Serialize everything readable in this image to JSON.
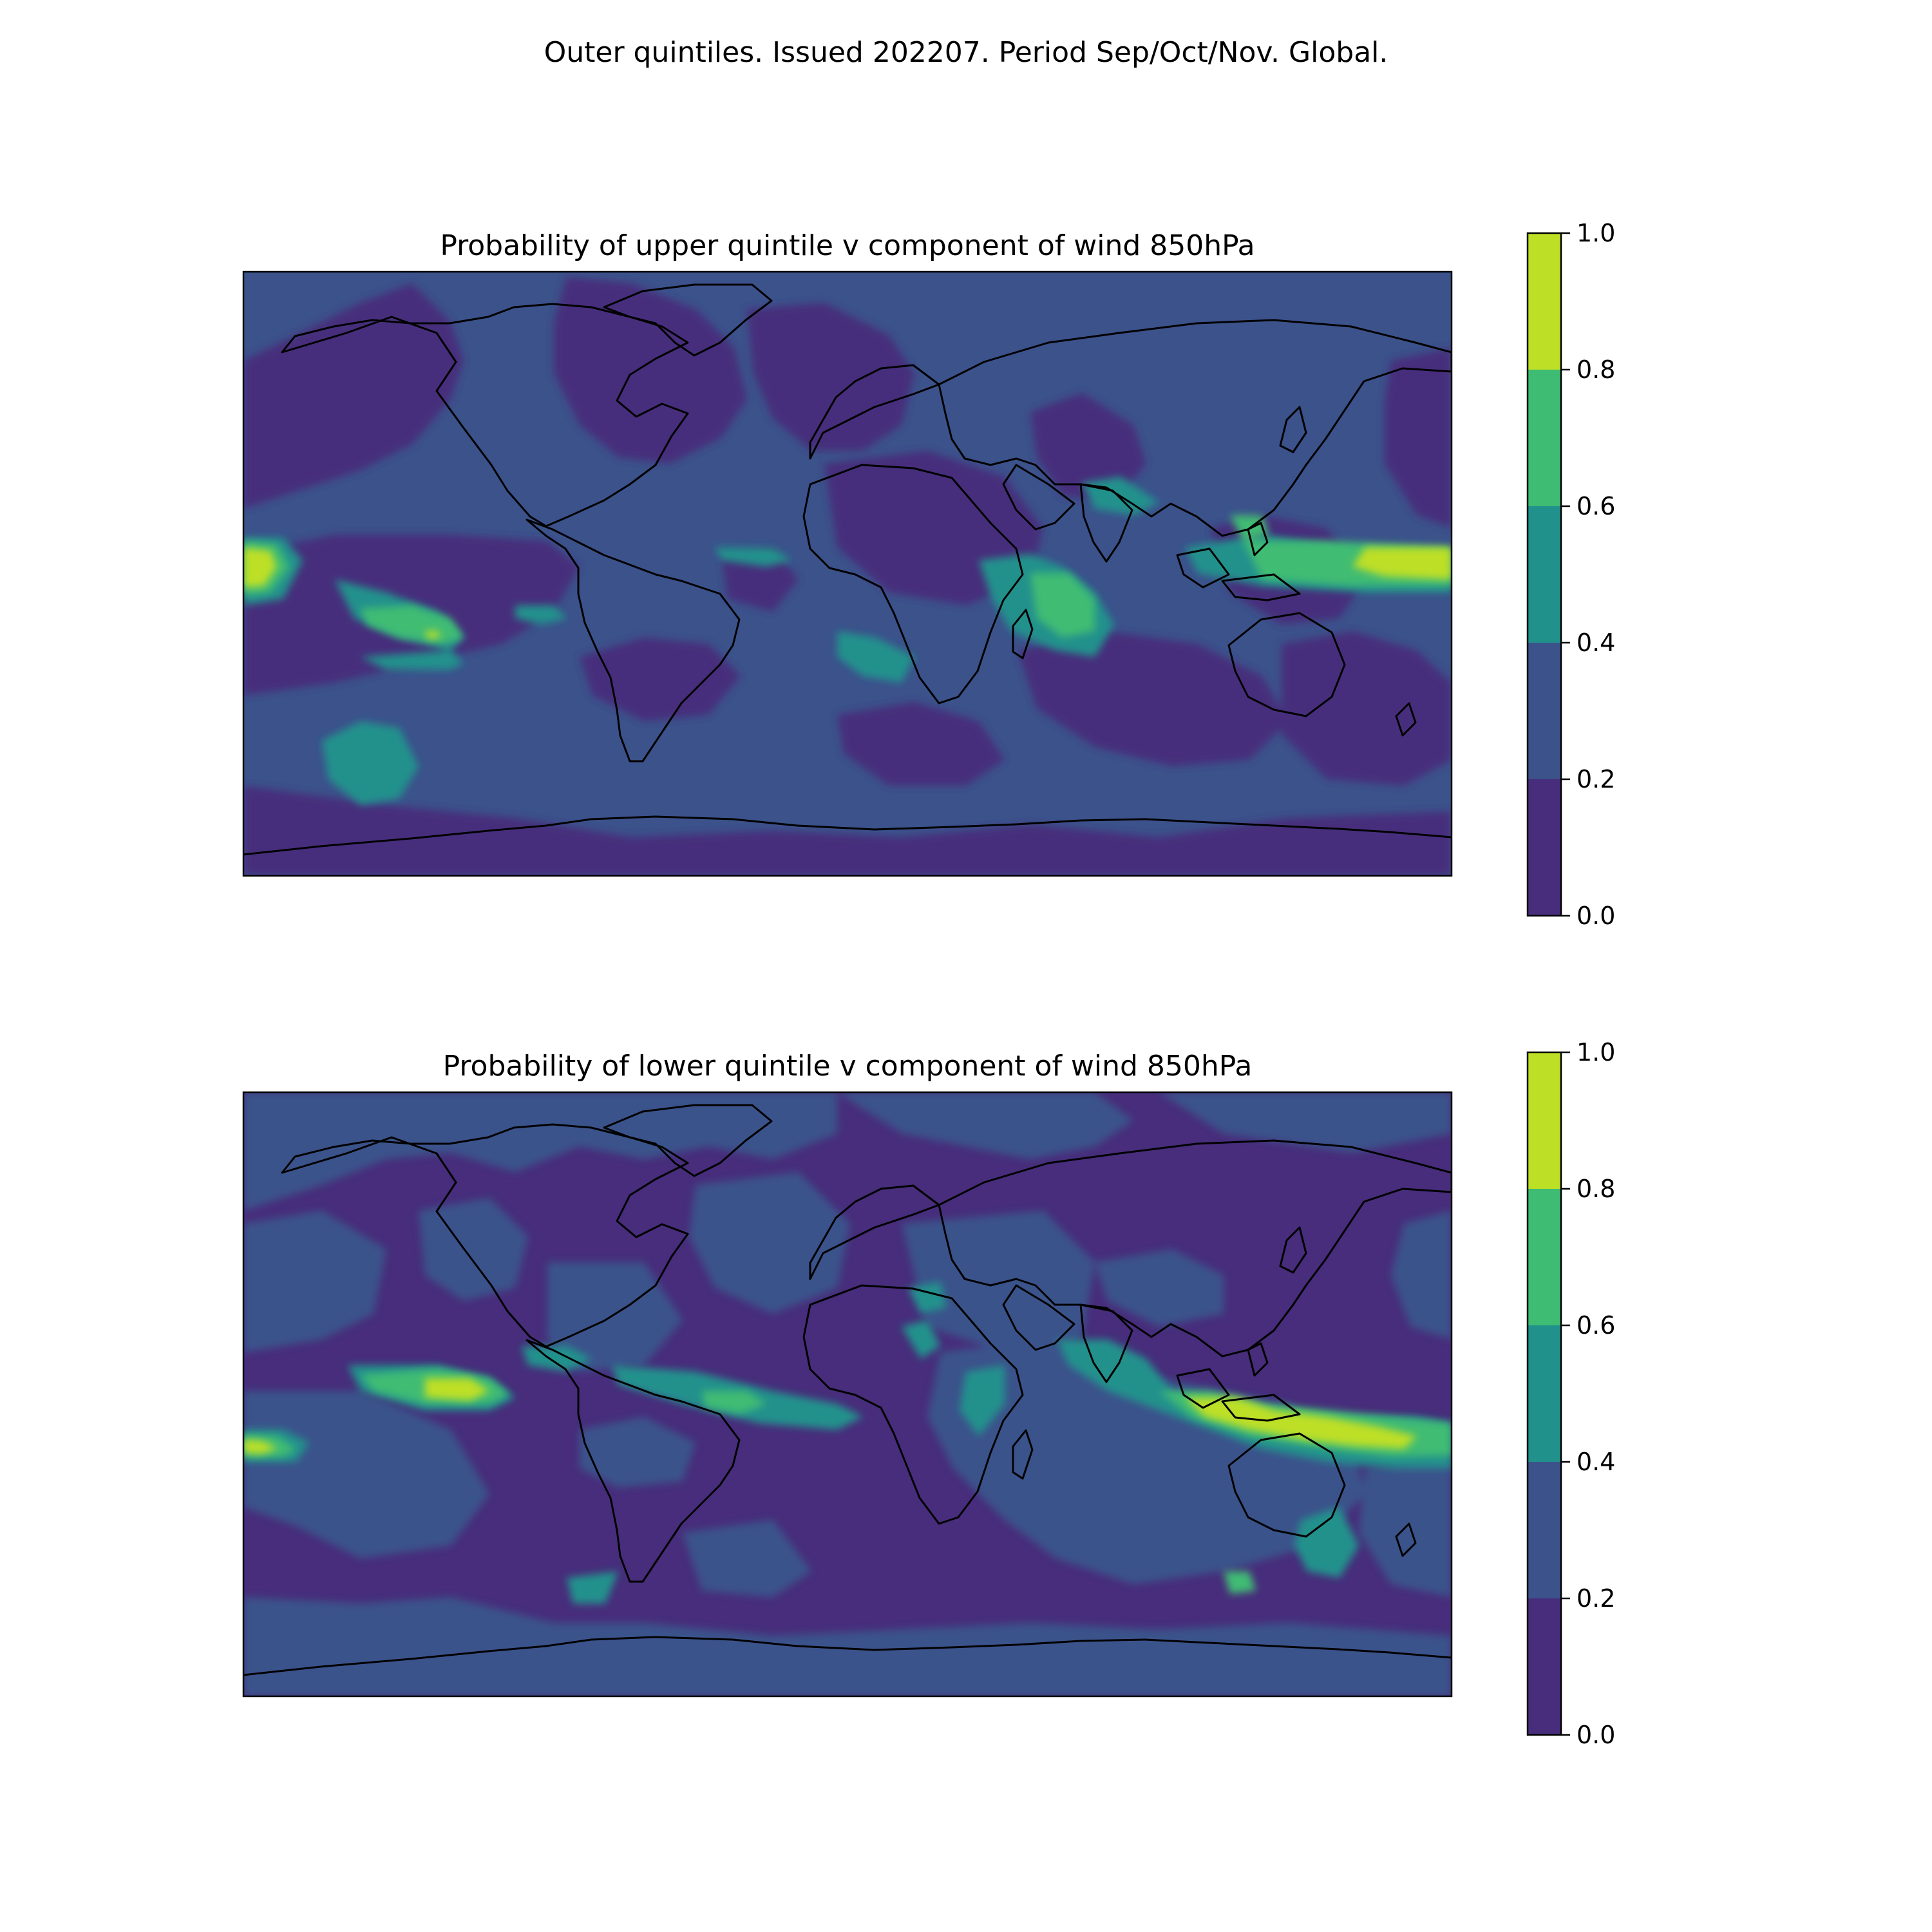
{
  "figure_title": "Outer quintiles. Issued 202207. Period Sep/Oct/Nov. Global.",
  "colorbar": {
    "levels": [
      0.0,
      0.2,
      0.4,
      0.6,
      0.8,
      1.0
    ],
    "tick_labels": [
      "0.0",
      "0.2",
      "0.4",
      "0.6",
      "0.8",
      "1.0"
    ],
    "colors": [
      "#472d7b",
      "#3b528b",
      "#21918c",
      "#3fbc73",
      "#bddf26"
    ],
    "coastline_color": "#000000"
  },
  "panels": [
    {
      "title": "Probability of upper quintile v component of wind 850hPa",
      "zones": [
        {
          "lon": [
            -180,
            -170
          ],
          "lat": [
            1,
            10
          ],
          "level": 4
        },
        {
          "lon": [
            -125,
            -95
          ],
          "lat": [
            -22,
            -10
          ],
          "level": 2
        },
        {
          "lon": [
            -115,
            -105
          ],
          "lat": [
            -18,
            -12
          ],
          "level": 3
        },
        {
          "lon": [
            -150,
            -130
          ],
          "lat": [
            -50,
            -35
          ],
          "level": 2
        },
        {
          "lon": [
            -40,
            -25
          ],
          "lat": [
            5,
            12
          ],
          "level": 2
        },
        {
          "lon": [
            -5,
            10
          ],
          "lat": [
            -22,
            -12
          ],
          "level": 2
        },
        {
          "lon": [
            45,
            68
          ],
          "lat": [
            -25,
            -2
          ],
          "level": 3
        },
        {
          "lon": [
            48,
            64
          ],
          "lat": [
            -18,
            -6
          ],
          "level": 2
        },
        {
          "lon": [
            80,
            110
          ],
          "lat": [
            10,
            20
          ],
          "level": 2
        },
        {
          "lon": [
            115,
            170
          ],
          "lat": [
            3,
            9
          ],
          "level": 3
        },
        {
          "lon": [
            150,
            180
          ],
          "lat": [
            2,
            8
          ],
          "level": 4
        }
      ]
    },
    {
      "title": "Probability of lower quintile v component of wind 850hPa",
      "zones": [
        {
          "lon": [
            -120,
            -90
          ],
          "lat": [
            8,
            20
          ],
          "level": 3
        },
        {
          "lon": [
            -112,
            -98
          ],
          "lat": [
            11,
            16
          ],
          "level": 4
        },
        {
          "lon": [
            -180,
            -165
          ],
          "lat": [
            -10,
            -2
          ],
          "level": 3
        },
        {
          "lon": [
            -180,
            -170
          ],
          "lat": [
            -8,
            -4
          ],
          "level": 4
        },
        {
          "lon": [
            -75,
            -55
          ],
          "lat": [
            -50,
            -40
          ],
          "level": 2
        },
        {
          "lon": [
            10,
            30
          ],
          "lat": [
            10,
            20
          ],
          "level": 2
        },
        {
          "lon": [
            40,
            60
          ],
          "lat": [
            0,
            12
          ],
          "level": 2
        },
        {
          "lon": [
            100,
            180
          ],
          "lat": [
            -12,
            5
          ],
          "level": 3
        },
        {
          "lon": [
            118,
            165
          ],
          "lat": [
            -8,
            0
          ],
          "level": 4
        },
        {
          "lon": [
            150,
            165
          ],
          "lat": [
            -35,
            -20
          ],
          "level": 2
        }
      ]
    }
  ]
}
